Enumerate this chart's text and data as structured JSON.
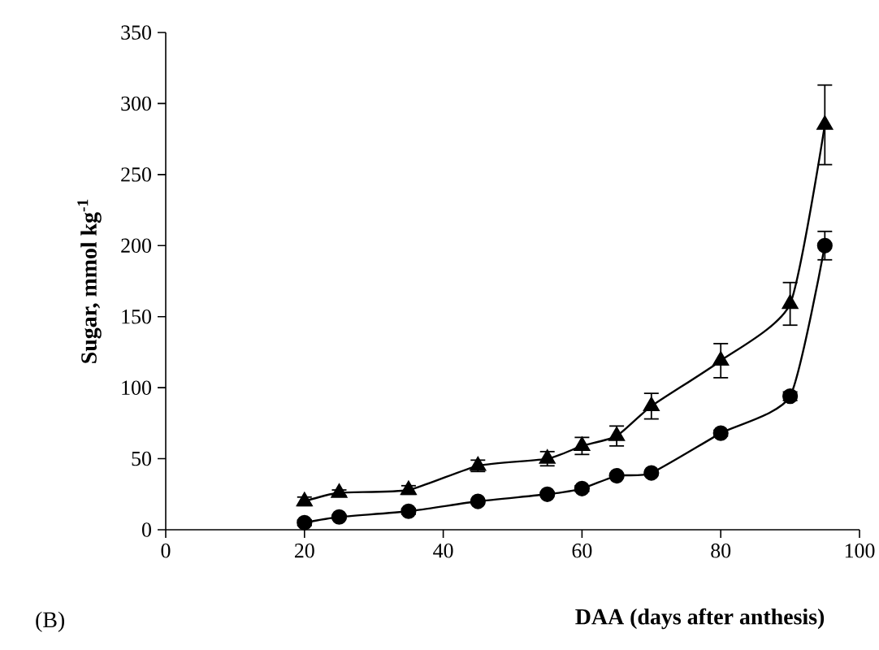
{
  "chart_data": {
    "type": "line",
    "xlabel": "DAA (days after anthesis)",
    "ylabel": "Sugar, mmol kg$^{-1}$",
    "annotations": [
      "(B)"
    ],
    "x": [
      20,
      25,
      35,
      45,
      55,
      60,
      65,
      70,
      80,
      90,
      95
    ],
    "series": [
      {
        "color": "#000000",
        "marker": "circle",
        "values": [
          5,
          9,
          13,
          20,
          25,
          29,
          38,
          40,
          68,
          94,
          200
        ],
        "errors": [
          2,
          1,
          2,
          1,
          1,
          2,
          1,
          1,
          2,
          3,
          10
        ]
      },
      {
        "color": "#000000",
        "marker": "triangle",
        "values": [
          20,
          26,
          28,
          45,
          50,
          59,
          66,
          87,
          119,
          159,
          285
        ],
        "errors": [
          3,
          2,
          3,
          4,
          5,
          6,
          7,
          9,
          12,
          15,
          28
        ]
      }
    ],
    "xlim": [
      0,
      100
    ],
    "xticks": [
      0,
      20,
      40,
      60,
      80,
      100
    ],
    "ylim": [
      0,
      350
    ],
    "yticks": [
      0,
      50,
      100,
      150,
      200,
      250,
      300,
      350
    ],
    "grid": false
  }
}
